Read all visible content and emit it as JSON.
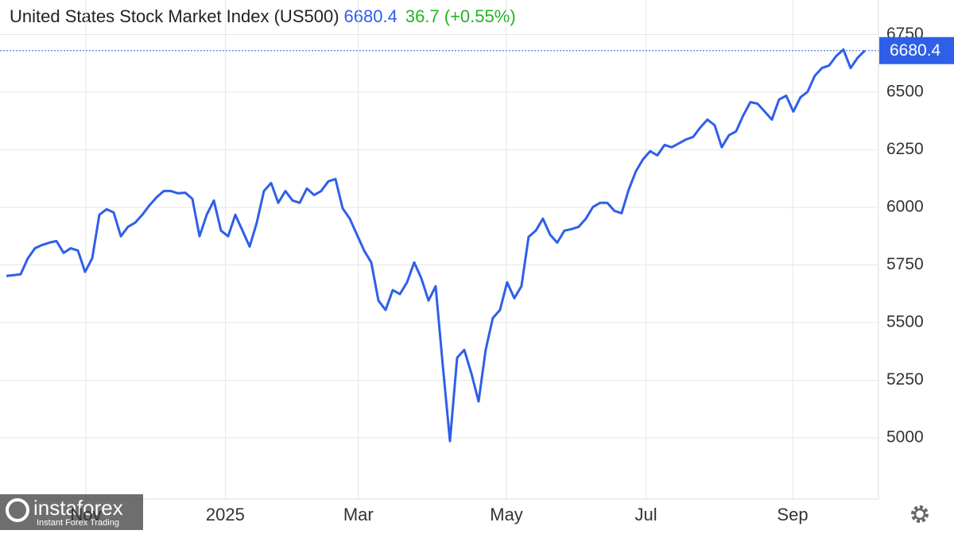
{
  "chart_data": {
    "type": "line",
    "title": "United States Stock Market Index (US500)",
    "price": "6680.4",
    "change": "36.7 (+0.55%)",
    "color": "#2f5fe8",
    "change_color": "#22b422",
    "values": [
      5703,
      5706,
      5710,
      5779,
      5823,
      5837,
      5847,
      5854,
      5803,
      5823,
      5813,
      5720,
      5779,
      5968,
      5992,
      5978,
      5875,
      5916,
      5934,
      5968,
      6009,
      6044,
      6071,
      6071,
      6061,
      6064,
      6037,
      5875,
      5968,
      6030,
      5899,
      5875,
      5968,
      5899,
      5830,
      5934,
      6071,
      6106,
      6020,
      6071,
      6030,
      6020,
      6082,
      6054,
      6071,
      6113,
      6123,
      5996,
      5951,
      5882,
      5813,
      5761,
      5596,
      5555,
      5641,
      5624,
      5675,
      5761,
      5692,
      5596,
      5658,
      5313,
      4986,
      5348,
      5382,
      5279,
      5158,
      5382,
      5520,
      5555,
      5675,
      5606,
      5658,
      5872,
      5899,
      5951,
      5882,
      5847,
      5899,
      5906,
      5916,
      5951,
      6002,
      6020,
      6020,
      5985,
      5975,
      6078,
      6157,
      6209,
      6244,
      6226,
      6271,
      6261,
      6278,
      6295,
      6306,
      6347,
      6381,
      6357,
      6261,
      6313,
      6330,
      6399,
      6457,
      6450,
      6416,
      6381,
      6468,
      6485,
      6416,
      6478,
      6502,
      6571,
      6605,
      6616,
      6657,
      6685,
      6605,
      6650,
      6680.4
    ],
    "xlim": [
      -0.89,
      121.9
    ],
    "xticks": [
      {
        "value": 11.1,
        "label": "Nov"
      },
      {
        "value": 30.6,
        "label": "2025"
      },
      {
        "value": 49.2,
        "label": "Mar"
      },
      {
        "value": 69.9,
        "label": "May"
      },
      {
        "value": 89.4,
        "label": "Jul"
      },
      {
        "value": 109.9,
        "label": "Sep"
      }
    ],
    "ylim": [
      4745,
      6900
    ],
    "yticks": [
      5000,
      5250,
      5500,
      5750,
      6000,
      6250,
      6500,
      6750
    ],
    "grid": true,
    "watermark": "instaforex",
    "watermark_sub": "Instant Forex Trading"
  }
}
